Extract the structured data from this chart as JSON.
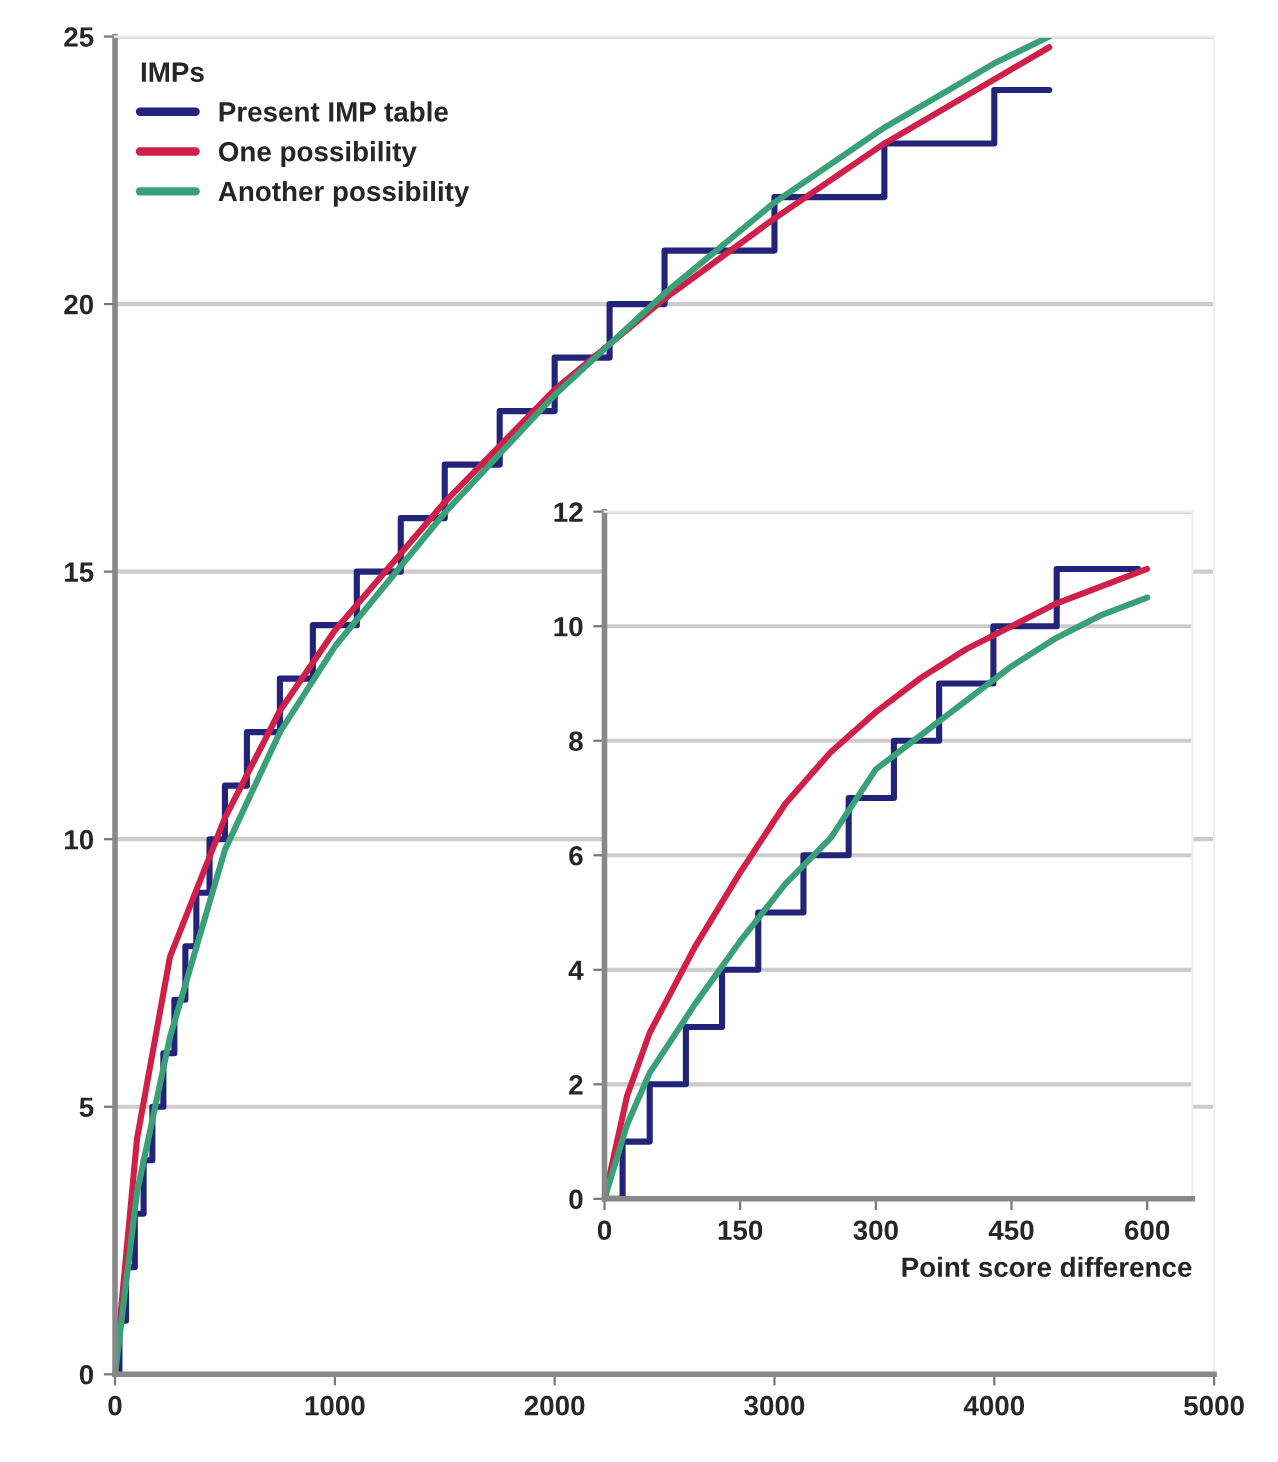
{
  "chart_data": [
    {
      "type": "line",
      "xlim": [
        0,
        5000
      ],
      "ylim": [
        0,
        25
      ],
      "xticks": [
        0,
        1000,
        2000,
        3000,
        4000,
        5000
      ],
      "yticks": [
        0,
        5,
        10,
        15,
        20,
        25
      ],
      "grid": "y",
      "legend": "top left",
      "legend_title": "IMPs",
      "marker": "none",
      "line_style": "solid",
      "series": [
        {
          "name": "Present IMP table",
          "type": "step",
          "color": "#23237a",
          "x": [
            0,
            20,
            50,
            90,
            130,
            170,
            220,
            270,
            320,
            370,
            430,
            500,
            600,
            750,
            900,
            1100,
            1300,
            1500,
            1750,
            2000,
            2250,
            2500,
            3000,
            3500,
            4000,
            4250
          ],
          "values": [
            0,
            1,
            2,
            3,
            4,
            5,
            6,
            7,
            8,
            9,
            10,
            11,
            12,
            13,
            14,
            15,
            16,
            17,
            18,
            19,
            20,
            21,
            22,
            23,
            24,
            24
          ]
        },
        {
          "name": "One possibility",
          "color": "#d0204a",
          "x": [
            0,
            100,
            250,
            500,
            750,
            1000,
            1500,
            2000,
            2500,
            3000,
            3500,
            4000,
            4250
          ],
          "values": [
            0,
            4.4,
            7.8,
            10.4,
            12.4,
            13.9,
            16.3,
            18.4,
            20.1,
            21.6,
            23.0,
            24.2,
            24.8
          ]
        },
        {
          "name": "Another possibility",
          "color": "#3aa078",
          "x": [
            0,
            100,
            250,
            500,
            750,
            1000,
            1500,
            2000,
            2500,
            3000,
            3500,
            4000,
            4250
          ],
          "values": [
            0,
            3.4,
            6.3,
            9.8,
            12.0,
            13.6,
            16.1,
            18.3,
            20.2,
            21.9,
            23.3,
            24.5,
            25.0
          ]
        }
      ]
    },
    {
      "type": "line",
      "xlabel": "Point score difference",
      "xlim": [
        0,
        650
      ],
      "ylim": [
        0,
        12
      ],
      "xticks": [
        0,
        150,
        300,
        450,
        600
      ],
      "yticks": [
        0,
        2,
        4,
        6,
        8,
        10,
        12
      ],
      "grid": "y",
      "marker": "none",
      "line_style": "solid",
      "series": [
        {
          "type": "step",
          "color": "#23237a",
          "x": [
            0,
            20,
            50,
            90,
            130,
            170,
            220,
            270,
            320,
            370,
            430,
            500,
            590
          ],
          "values": [
            0,
            1,
            2,
            3,
            4,
            5,
            6,
            7,
            8,
            9,
            10,
            11,
            11
          ]
        },
        {
          "color": "#d0204a",
          "x": [
            0,
            25,
            50,
            100,
            150,
            200,
            250,
            300,
            350,
            400,
            450,
            500,
            550,
            600
          ],
          "values": [
            0,
            1.8,
            2.9,
            4.4,
            5.7,
            6.9,
            7.8,
            8.5,
            9.1,
            9.6,
            10.0,
            10.4,
            10.7,
            11.0
          ]
        },
        {
          "color": "#3aa078",
          "x": [
            0,
            25,
            50,
            100,
            150,
            200,
            250,
            300,
            350,
            400,
            450,
            500,
            550,
            600
          ],
          "values": [
            0,
            1.3,
            2.2,
            3.4,
            4.5,
            5.5,
            6.3,
            7.5,
            8.1,
            8.7,
            9.3,
            9.8,
            10.2,
            10.5
          ]
        }
      ]
    }
  ]
}
